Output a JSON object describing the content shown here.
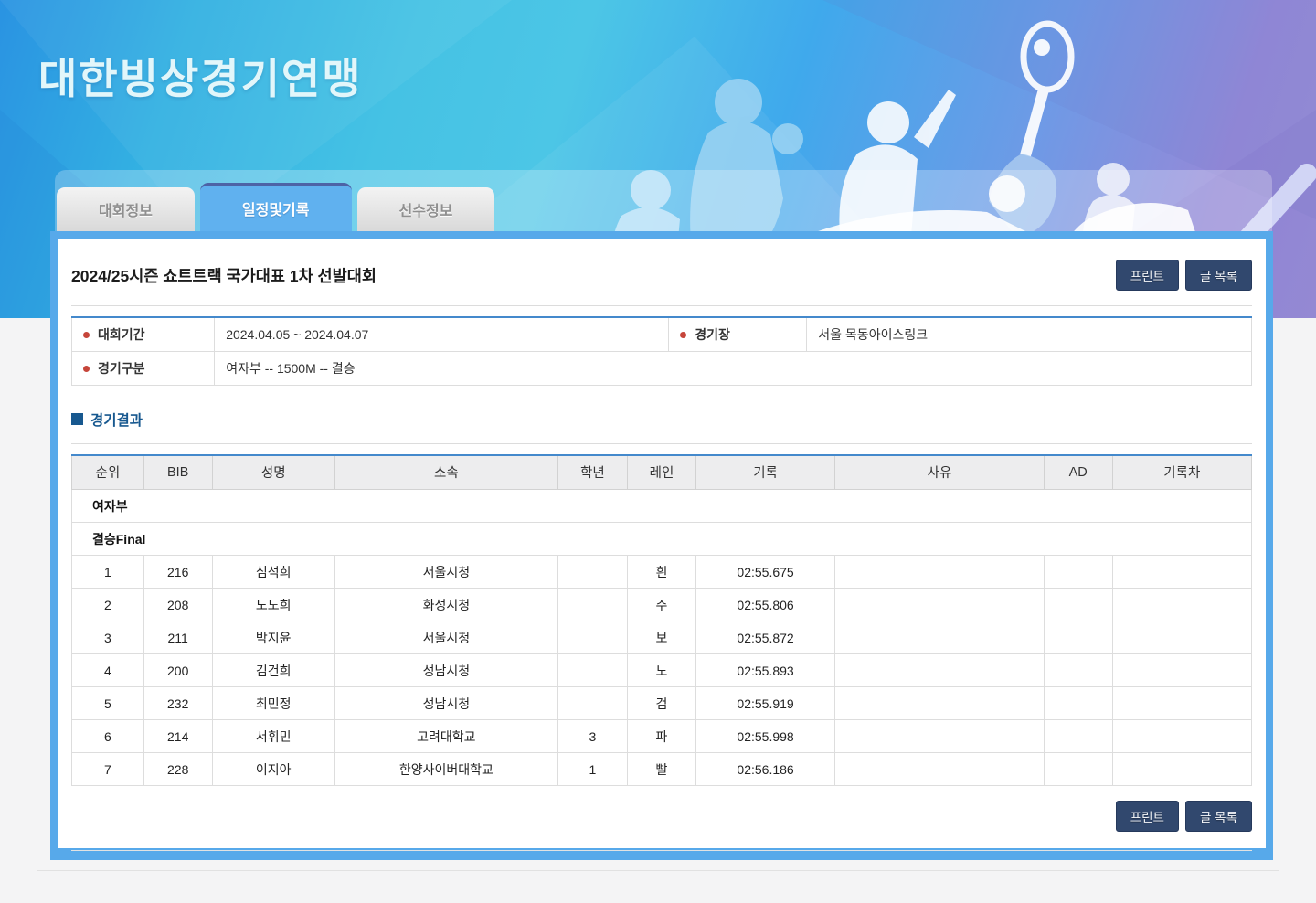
{
  "header": {
    "site_title": "대한빙상경기연맹",
    "tabs": [
      {
        "label": "대회정보",
        "active": false
      },
      {
        "label": "일정및기록",
        "active": true
      },
      {
        "label": "선수정보",
        "active": false
      }
    ]
  },
  "toolbar": {
    "print_label": "프린트",
    "list_label": "글 목록"
  },
  "content": {
    "page_title": "2024/25시즌 쇼트트랙 국가대표 1차 선발대회",
    "info": {
      "period_label": "대회기간",
      "period_value": "2024.04.05 ~ 2024.04.07",
      "venue_label": "경기장",
      "venue_value": "서울 목동아이스링크",
      "division_label": "경기구분",
      "division_value": "여자부 -- 1500M -- 결승"
    },
    "results": {
      "section_title": "경기결과",
      "columns": [
        "순위",
        "BIB",
        "성명",
        "소속",
        "학년",
        "레인",
        "기록",
        "사유",
        "AD",
        "기록차"
      ],
      "column_widths": [
        "6.1%",
        "5.8%",
        "10.4%",
        "18.9%",
        "5.9%",
        "5.8%",
        "11.8%",
        "17.7%",
        "5.8%",
        "11.8%"
      ],
      "group_rows": [
        "여자부",
        "결승Final"
      ],
      "rows": [
        {
          "rank": "1",
          "bib": "216",
          "name": "심석희",
          "team": "서울시청",
          "grade": "",
          "lane": "흰",
          "record": "02:55.675",
          "reason": "",
          "ad": "",
          "diff": ""
        },
        {
          "rank": "2",
          "bib": "208",
          "name": "노도희",
          "team": "화성시청",
          "grade": "",
          "lane": "주",
          "record": "02:55.806",
          "reason": "",
          "ad": "",
          "diff": ""
        },
        {
          "rank": "3",
          "bib": "211",
          "name": "박지윤",
          "team": "서울시청",
          "grade": "",
          "lane": "보",
          "record": "02:55.872",
          "reason": "",
          "ad": "",
          "diff": ""
        },
        {
          "rank": "4",
          "bib": "200",
          "name": "김건희",
          "team": "성남시청",
          "grade": "",
          "lane": "노",
          "record": "02:55.893",
          "reason": "",
          "ad": "",
          "diff": ""
        },
        {
          "rank": "5",
          "bib": "232",
          "name": "최민정",
          "team": "성남시청",
          "grade": "",
          "lane": "검",
          "record": "02:55.919",
          "reason": "",
          "ad": "",
          "diff": ""
        },
        {
          "rank": "6",
          "bib": "214",
          "name": "서휘민",
          "team": "고려대학교",
          "grade": "3",
          "lane": "파",
          "record": "02:55.998",
          "reason": "",
          "ad": "",
          "diff": ""
        },
        {
          "rank": "7",
          "bib": "228",
          "name": "이지아",
          "team": "한양사이버대학교",
          "grade": "1",
          "lane": "빨",
          "record": "02:56.186",
          "reason": "",
          "ad": "",
          "diff": ""
        }
      ]
    }
  },
  "colors": {
    "panel_border": "#57a9ea",
    "table_top_border": "#4489cc",
    "button_navy": "#31486e",
    "section_blue": "#17588f",
    "bullet_red": "#c6453a",
    "active_tab_blue": "#60b1ef"
  }
}
